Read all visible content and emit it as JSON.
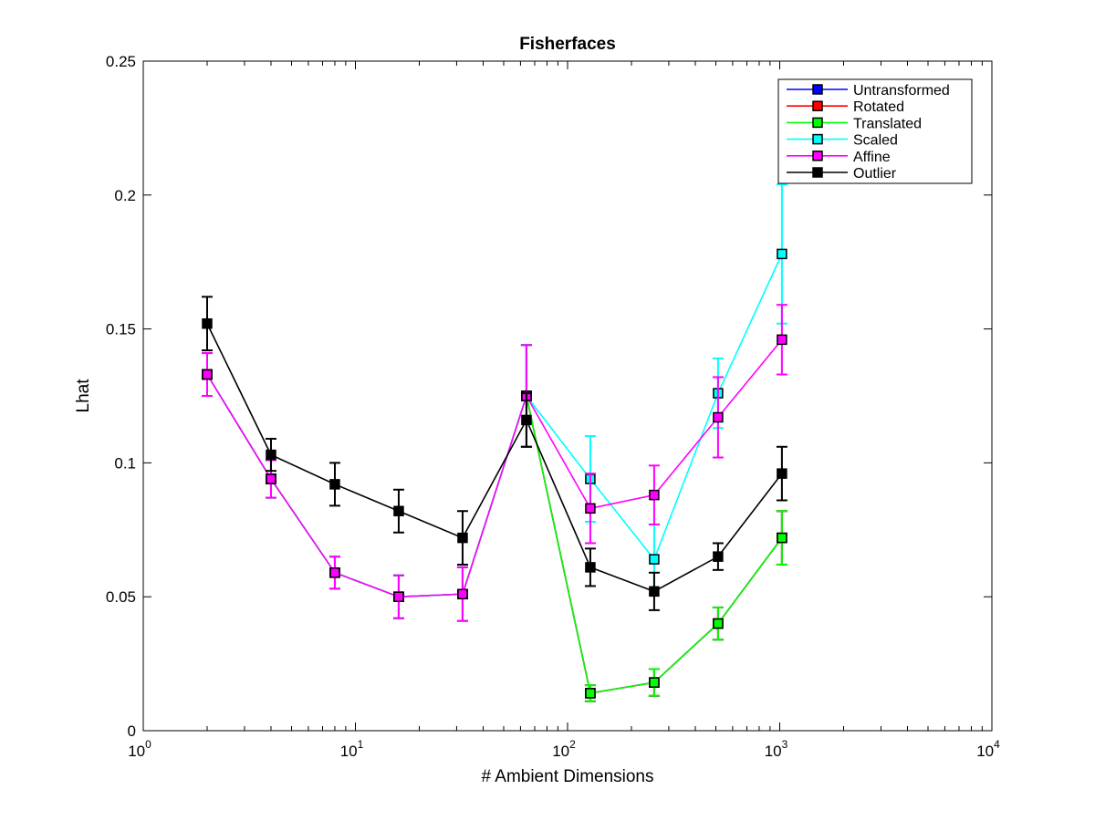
{
  "chart_data": {
    "type": "line",
    "title": "Fisherfaces",
    "xlabel": "# Ambient Dimensions",
    "ylabel": "Lhat",
    "xscale": "log",
    "xlim": [
      1,
      10000
    ],
    "ylim": [
      0,
      0.25
    ],
    "xticks": [
      {
        "value": 1,
        "base": "10",
        "exp": "0"
      },
      {
        "value": 10,
        "base": "10",
        "exp": "1"
      },
      {
        "value": 100,
        "base": "10",
        "exp": "2"
      },
      {
        "value": 1000,
        "base": "10",
        "exp": "3"
      },
      {
        "value": 10000,
        "base": "10",
        "exp": "4"
      }
    ],
    "yticks": [
      {
        "value": 0,
        "label": "0"
      },
      {
        "value": 0.05,
        "label": "0.05"
      },
      {
        "value": 0.1,
        "label": "0.1"
      },
      {
        "value": 0.15,
        "label": "0.15"
      },
      {
        "value": 0.2,
        "label": "0.2"
      },
      {
        "value": 0.25,
        "label": "0.25"
      }
    ],
    "grid": false,
    "legend_position": "top-right",
    "x": [
      2,
      4,
      8,
      16,
      32,
      64,
      128,
      256,
      512,
      1024
    ],
    "series": [
      {
        "name": "Untransformed",
        "color": "#0000ff",
        "marker": "square",
        "values": [
          0.133,
          0.094,
          0.059,
          0.05,
          0.051,
          0.125,
          0.014,
          0.018,
          0.04,
          0.072
        ],
        "errors": [
          0.008,
          0.007,
          0.006,
          0.008,
          0.01,
          0.019,
          0.003,
          0.005,
          0.006,
          0.01
        ]
      },
      {
        "name": "Rotated",
        "color": "#ff0000",
        "marker": "square",
        "values": [
          0.133,
          0.094,
          0.059,
          0.05,
          0.051,
          0.125,
          0.014,
          0.018,
          0.04,
          0.072
        ],
        "errors": [
          0.008,
          0.007,
          0.006,
          0.008,
          0.01,
          0.019,
          0.003,
          0.005,
          0.006,
          0.01
        ]
      },
      {
        "name": "Translated",
        "color": "#00ff00",
        "marker": "square",
        "values": [
          0.133,
          0.094,
          0.059,
          0.05,
          0.051,
          0.125,
          0.014,
          0.018,
          0.04,
          0.072
        ],
        "errors": [
          0.008,
          0.007,
          0.006,
          0.008,
          0.01,
          0.019,
          0.003,
          0.005,
          0.006,
          0.01
        ]
      },
      {
        "name": "Scaled",
        "color": "#00ffff",
        "marker": "square",
        "values": [
          0.133,
          0.094,
          0.059,
          0.05,
          0.051,
          0.125,
          0.094,
          0.064,
          0.126,
          0.178
        ],
        "errors": [
          0.008,
          0.007,
          0.006,
          0.008,
          0.01,
          0.019,
          0.016,
          0.013,
          0.013,
          0.026
        ]
      },
      {
        "name": "Affine",
        "color": "#ff00ff",
        "marker": "square",
        "values": [
          0.133,
          0.094,
          0.059,
          0.05,
          0.051,
          0.125,
          0.083,
          0.088,
          0.117,
          0.146
        ],
        "errors": [
          0.008,
          0.007,
          0.006,
          0.008,
          0.01,
          0.019,
          0.013,
          0.011,
          0.015,
          0.013
        ]
      },
      {
        "name": "Outlier",
        "color": "#000000",
        "marker": "square",
        "values": [
          0.152,
          0.103,
          0.092,
          0.082,
          0.072,
          0.116,
          0.061,
          0.052,
          0.065,
          0.096
        ],
        "errors": [
          0.01,
          0.006,
          0.008,
          0.008,
          0.01,
          0.01,
          0.007,
          0.007,
          0.005,
          0.01
        ]
      }
    ]
  }
}
